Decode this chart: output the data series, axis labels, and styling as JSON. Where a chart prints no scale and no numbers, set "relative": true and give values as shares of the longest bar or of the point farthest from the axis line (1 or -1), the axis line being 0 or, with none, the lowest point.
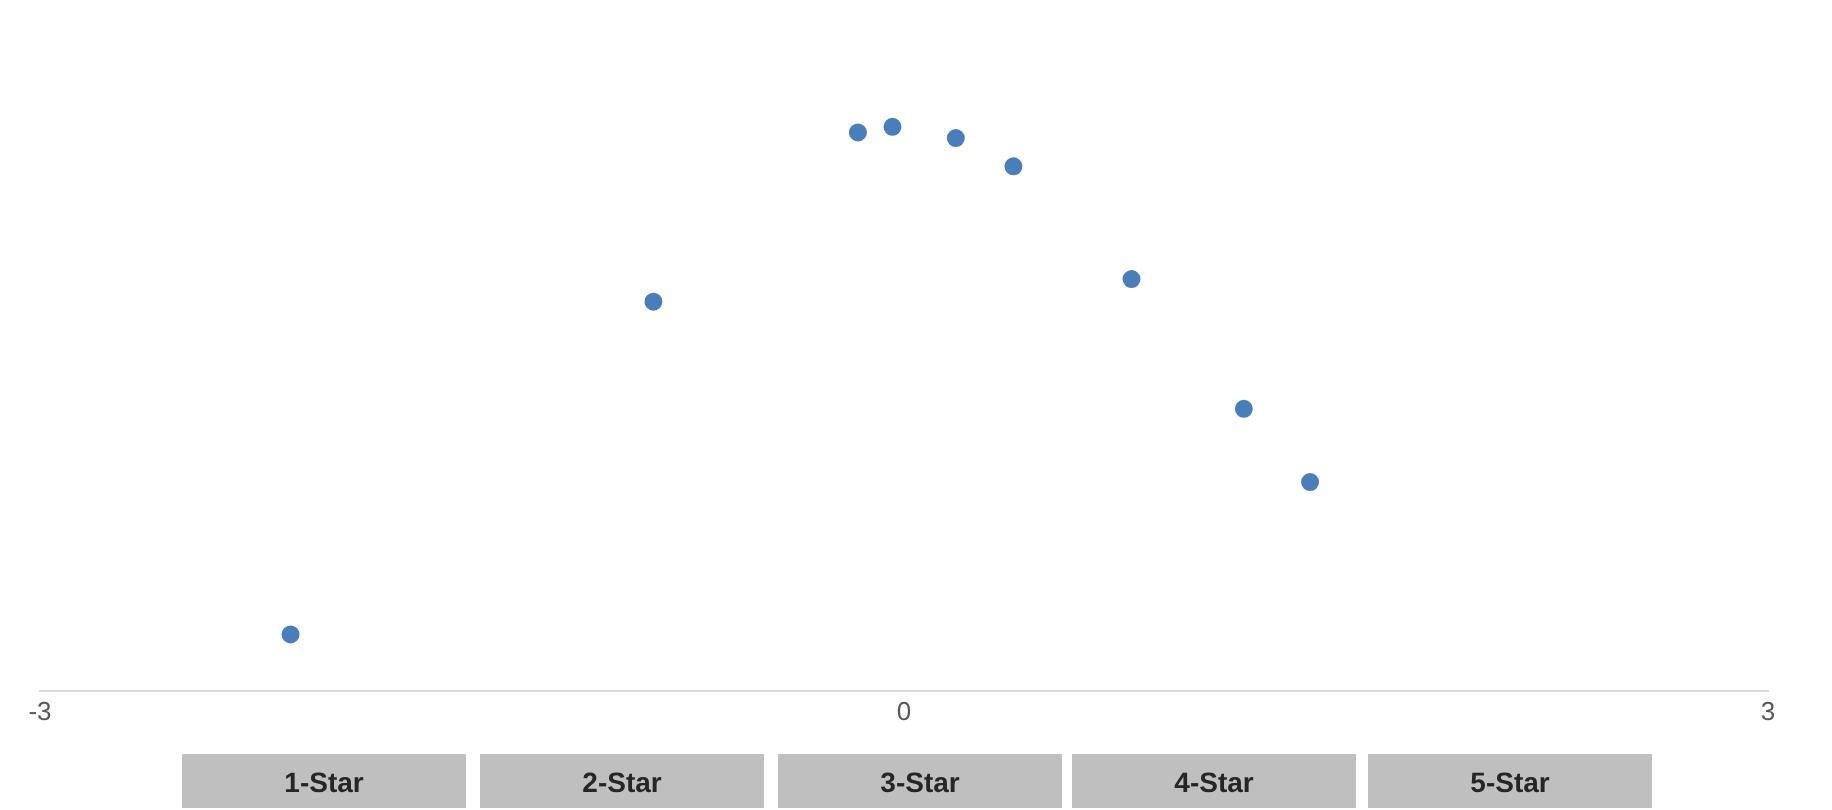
{
  "chart_data": {
    "type": "scatter",
    "relative": true,
    "x": [
      -2.13,
      -0.87,
      -0.16,
      -0.04,
      0.18,
      0.38,
      0.79,
      1.18,
      1.41
    ],
    "series": [
      {
        "color": "#4a7ebb",
        "values": [
          0.1,
          0.69,
          0.99,
          1,
          0.98,
          0.93,
          0.73,
          0.5,
          0.37
        ]
      }
    ],
    "xlim": [
      -3,
      3
    ],
    "xticks": [
      -3,
      0,
      3
    ],
    "grid": false,
    "legend": false,
    "marker": "circle",
    "annotations": [
      "1-Star",
      "2-Star",
      "3-Star",
      "4-Star",
      "5-Star"
    ]
  }
}
